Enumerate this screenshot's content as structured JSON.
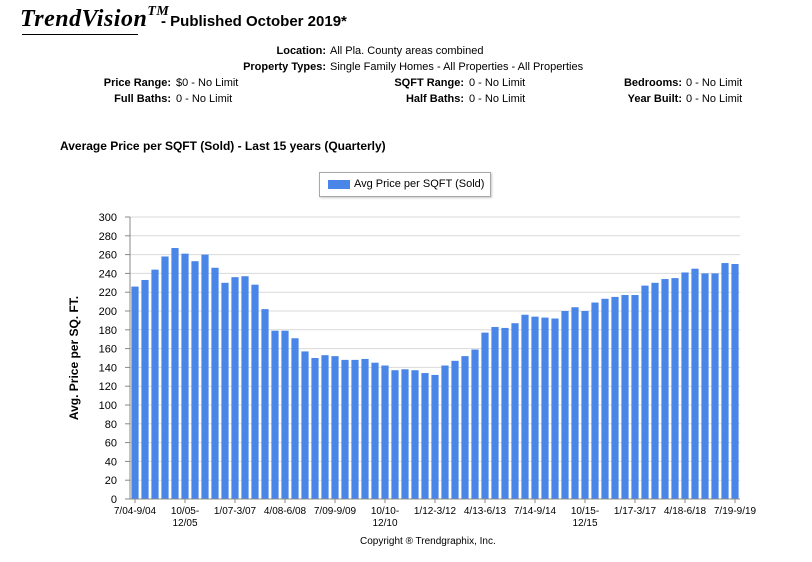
{
  "header": {
    "brand": "TrendVision",
    "brand_tm": "TM",
    "published": "- Published October 2019*"
  },
  "criteria": {
    "location_label": "Location:",
    "location_value": "All Pla. County areas combined",
    "property_types_label": "Property Types:",
    "property_types_value": "Single Family Homes - All Properties - All Properties",
    "price_range_label": "Price Range:",
    "price_range_value": "$0 - No Limit",
    "sqft_range_label": "SQFT Range:",
    "sqft_range_value": "0 - No Limit",
    "bedrooms_label": "Bedrooms:",
    "bedrooms_value": "0 - No Limit",
    "full_baths_label": "Full Baths:",
    "full_baths_value": "0 - No Limit",
    "half_baths_label": "Half Baths:",
    "half_baths_value": "0 - No Limit",
    "year_built_label": "Year Built:",
    "year_built_value": "0 - No Limit"
  },
  "chart_data": {
    "type": "bar",
    "title": "Average Price per SQFT (Sold) - Last 15 years (Quarterly)",
    "ylabel": "Avg. Price per SQ. FT.",
    "xlabel": "",
    "ylim": [
      0,
      300
    ],
    "yticks": [
      0,
      20,
      40,
      60,
      80,
      100,
      120,
      140,
      160,
      180,
      200,
      220,
      240,
      260,
      280,
      300
    ],
    "grid": true,
    "legend_position": "top-center",
    "bar_color": "#4a86e8",
    "series": [
      {
        "name": "Avg Price per SQFT (Sold)",
        "values": [
          226,
          233,
          244,
          258,
          267,
          261,
          253,
          260,
          246,
          230,
          236,
          237,
          228,
          202,
          179,
          179,
          171,
          157,
          150,
          153,
          152,
          148,
          148,
          149,
          145,
          142,
          137,
          138,
          137,
          134,
          132,
          142,
          147,
          152,
          159,
          177,
          183,
          182,
          187,
          196,
          194,
          193,
          192,
          200,
          204,
          200,
          209,
          213,
          215,
          217,
          217,
          227,
          230,
          234,
          235,
          241,
          245,
          240,
          240,
          251,
          250
        ]
      }
    ],
    "x_tick_labels": [
      {
        "index": 0,
        "lines": [
          "7/04-9/04"
        ]
      },
      {
        "index": 5,
        "lines": [
          "10/05-",
          "12/05"
        ]
      },
      {
        "index": 10,
        "lines": [
          "1/07-3/07"
        ]
      },
      {
        "index": 15,
        "lines": [
          "4/08-6/08"
        ]
      },
      {
        "index": 20,
        "lines": [
          "7/09-9/09"
        ]
      },
      {
        "index": 25,
        "lines": [
          "10/10-",
          "12/10"
        ]
      },
      {
        "index": 30,
        "lines": [
          "1/12-3/12"
        ]
      },
      {
        "index": 35,
        "lines": [
          "4/13-6/13"
        ]
      },
      {
        "index": 40,
        "lines": [
          "7/14-9/14"
        ]
      },
      {
        "index": 45,
        "lines": [
          "10/15-",
          "12/15"
        ]
      },
      {
        "index": 50,
        "lines": [
          "1/17-3/17"
        ]
      },
      {
        "index": 55,
        "lines": [
          "4/18-6/18"
        ]
      },
      {
        "index": 60,
        "lines": [
          "7/19-9/19"
        ]
      }
    ]
  },
  "footer": {
    "copyright": "Copyright ® Trendgraphix, Inc."
  }
}
